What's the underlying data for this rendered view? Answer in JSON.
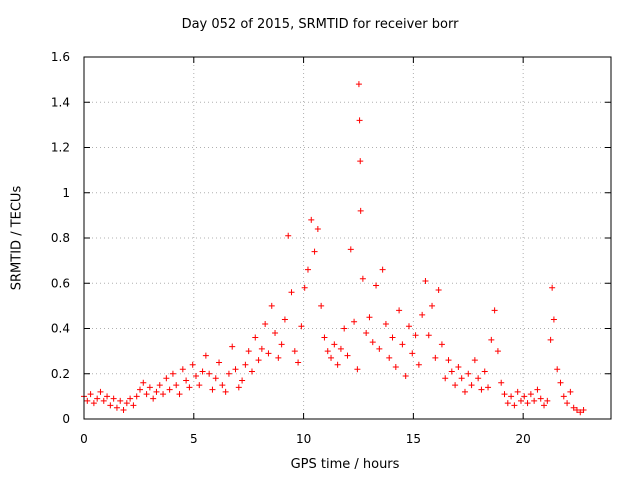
{
  "chart_data": {
    "type": "scatter",
    "title": "Day 052 of 2015, SRMTID for receiver borr",
    "xlabel": "GPS time / hours",
    "ylabel": "SRMTID / TECUs",
    "xlim": [
      0,
      24
    ],
    "ylim": [
      0,
      1.6
    ],
    "xticks": [
      0,
      5,
      10,
      15,
      20
    ],
    "yticks": [
      0,
      0.2,
      0.4,
      0.6,
      0.8,
      1,
      1.2,
      1.4,
      1.6
    ],
    "xtick_labels": [
      "0",
      "5",
      "10",
      "15",
      "20"
    ],
    "ytick_labels": [
      "0",
      "0.2",
      "0.4",
      "0.6",
      "0.8",
      "1",
      "1.2",
      "1.4",
      "1.6"
    ],
    "grid": true,
    "marker": "+",
    "color": "#ff0000",
    "series": [
      {
        "name": "SRMTID",
        "points": [
          [
            0.0,
            0.1
          ],
          [
            0.15,
            0.08
          ],
          [
            0.3,
            0.11
          ],
          [
            0.45,
            0.07
          ],
          [
            0.6,
            0.09
          ],
          [
            0.75,
            0.12
          ],
          [
            0.9,
            0.08
          ],
          [
            1.05,
            0.1
          ],
          [
            1.2,
            0.06
          ],
          [
            1.35,
            0.09
          ],
          [
            1.5,
            0.05
          ],
          [
            1.65,
            0.08
          ],
          [
            1.8,
            0.04
          ],
          [
            1.95,
            0.07
          ],
          [
            2.1,
            0.09
          ],
          [
            2.25,
            0.06
          ],
          [
            2.4,
            0.1
          ],
          [
            2.55,
            0.13
          ],
          [
            2.7,
            0.16
          ],
          [
            2.85,
            0.11
          ],
          [
            3.0,
            0.14
          ],
          [
            3.15,
            0.09
          ],
          [
            3.3,
            0.12
          ],
          [
            3.45,
            0.15
          ],
          [
            3.6,
            0.11
          ],
          [
            3.75,
            0.18
          ],
          [
            3.9,
            0.13
          ],
          [
            4.05,
            0.2
          ],
          [
            4.2,
            0.15
          ],
          [
            4.35,
            0.11
          ],
          [
            4.5,
            0.22
          ],
          [
            4.65,
            0.17
          ],
          [
            4.8,
            0.14
          ],
          [
            4.95,
            0.24
          ],
          [
            5.1,
            0.19
          ],
          [
            5.25,
            0.15
          ],
          [
            5.4,
            0.21
          ],
          [
            5.55,
            0.28
          ],
          [
            5.7,
            0.2
          ],
          [
            5.85,
            0.13
          ],
          [
            6.0,
            0.18
          ],
          [
            6.15,
            0.25
          ],
          [
            6.3,
            0.15
          ],
          [
            6.45,
            0.12
          ],
          [
            6.6,
            0.2
          ],
          [
            6.75,
            0.32
          ],
          [
            6.9,
            0.22
          ],
          [
            7.05,
            0.14
          ],
          [
            7.2,
            0.17
          ],
          [
            7.35,
            0.24
          ],
          [
            7.5,
            0.3
          ],
          [
            7.65,
            0.21
          ],
          [
            7.8,
            0.36
          ],
          [
            7.95,
            0.26
          ],
          [
            8.1,
            0.31
          ],
          [
            8.25,
            0.42
          ],
          [
            8.4,
            0.29
          ],
          [
            8.55,
            0.5
          ],
          [
            8.7,
            0.38
          ],
          [
            8.85,
            0.27
          ],
          [
            9.0,
            0.33
          ],
          [
            9.15,
            0.44
          ],
          [
            9.3,
            0.81
          ],
          [
            9.45,
            0.56
          ],
          [
            9.6,
            0.3
          ],
          [
            9.75,
            0.25
          ],
          [
            9.9,
            0.41
          ],
          [
            10.05,
            0.58
          ],
          [
            10.2,
            0.66
          ],
          [
            10.35,
            0.88
          ],
          [
            10.5,
            0.74
          ],
          [
            10.65,
            0.84
          ],
          [
            10.8,
            0.5
          ],
          [
            10.95,
            0.36
          ],
          [
            11.1,
            0.3
          ],
          [
            11.25,
            0.27
          ],
          [
            11.4,
            0.33
          ],
          [
            11.55,
            0.24
          ],
          [
            11.7,
            0.31
          ],
          [
            11.85,
            0.4
          ],
          [
            12.0,
            0.28
          ],
          [
            12.15,
            0.75
          ],
          [
            12.3,
            0.43
          ],
          [
            12.45,
            0.22
          ],
          [
            12.52,
            1.48
          ],
          [
            12.55,
            1.32
          ],
          [
            12.58,
            1.14
          ],
          [
            12.6,
            0.92
          ],
          [
            12.7,
            0.62
          ],
          [
            12.85,
            0.38
          ],
          [
            13.0,
            0.45
          ],
          [
            13.15,
            0.34
          ],
          [
            13.3,
            0.59
          ],
          [
            13.45,
            0.31
          ],
          [
            13.6,
            0.66
          ],
          [
            13.75,
            0.42
          ],
          [
            13.9,
            0.27
          ],
          [
            14.05,
            0.36
          ],
          [
            14.2,
            0.23
          ],
          [
            14.35,
            0.48
          ],
          [
            14.5,
            0.33
          ],
          [
            14.65,
            0.19
          ],
          [
            14.8,
            0.41
          ],
          [
            14.95,
            0.29
          ],
          [
            15.1,
            0.37
          ],
          [
            15.25,
            0.24
          ],
          [
            15.4,
            0.46
          ],
          [
            15.55,
            0.61
          ],
          [
            15.7,
            0.37
          ],
          [
            15.85,
            0.5
          ],
          [
            16.0,
            0.27
          ],
          [
            16.15,
            0.57
          ],
          [
            16.3,
            0.33
          ],
          [
            16.45,
            0.18
          ],
          [
            16.6,
            0.26
          ],
          [
            16.75,
            0.21
          ],
          [
            16.9,
            0.15
          ],
          [
            17.05,
            0.23
          ],
          [
            17.2,
            0.18
          ],
          [
            17.35,
            0.12
          ],
          [
            17.5,
            0.2
          ],
          [
            17.65,
            0.15
          ],
          [
            17.8,
            0.26
          ],
          [
            17.95,
            0.18
          ],
          [
            18.1,
            0.13
          ],
          [
            18.25,
            0.21
          ],
          [
            18.4,
            0.14
          ],
          [
            18.55,
            0.35
          ],
          [
            18.7,
            0.48
          ],
          [
            18.85,
            0.3
          ],
          [
            19.0,
            0.16
          ],
          [
            19.15,
            0.11
          ],
          [
            19.3,
            0.07
          ],
          [
            19.45,
            0.1
          ],
          [
            19.6,
            0.06
          ],
          [
            19.75,
            0.12
          ],
          [
            19.9,
            0.08
          ],
          [
            20.05,
            0.1
          ],
          [
            20.2,
            0.07
          ],
          [
            20.35,
            0.11
          ],
          [
            20.5,
            0.08
          ],
          [
            20.65,
            0.13
          ],
          [
            20.8,
            0.09
          ],
          [
            20.95,
            0.06
          ],
          [
            21.1,
            0.08
          ],
          [
            21.25,
            0.35
          ],
          [
            21.32,
            0.58
          ],
          [
            21.4,
            0.44
          ],
          [
            21.55,
            0.22
          ],
          [
            21.7,
            0.16
          ],
          [
            21.85,
            0.1
          ],
          [
            22.0,
            0.07
          ],
          [
            22.15,
            0.12
          ],
          [
            22.3,
            0.05
          ],
          [
            22.45,
            0.04
          ],
          [
            22.6,
            0.03
          ],
          [
            22.75,
            0.04
          ]
        ]
      }
    ]
  }
}
